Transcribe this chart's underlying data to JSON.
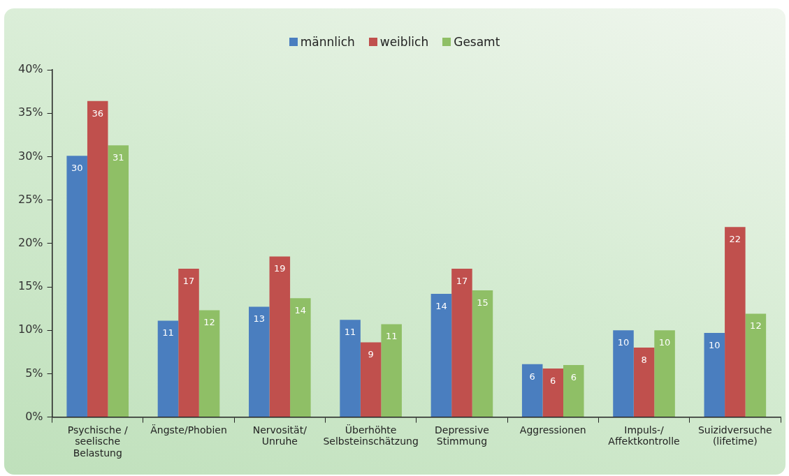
{
  "chart_data": {
    "type": "bar",
    "categories": [
      "Psychische / seelische Belastung",
      "Ängste/Phobien",
      "Nervosität/Unruhe",
      "Überhöhte Selbsteinschätzung",
      "Depressive Stimmung",
      "Aggressionen",
      "Impuls-/Affektkontrolle",
      "Suizidversuche (lifetime)"
    ],
    "series": [
      {
        "name": "männlich",
        "color": "#4a7ebf",
        "values": [
          30.1,
          11.1,
          12.7,
          11.2,
          14.2,
          6.1,
          10.0,
          9.7
        ],
        "value_labels": [
          "30",
          "11",
          "13",
          "11",
          "14",
          "6",
          "10",
          "10"
        ]
      },
      {
        "name": "weiblich",
        "color": "#c0504d",
        "values": [
          36.4,
          17.1,
          18.5,
          8.6,
          17.1,
          5.6,
          8.0,
          21.9
        ],
        "value_labels": [
          "36",
          "17",
          "19",
          "9",
          "17",
          "6",
          "8",
          "22"
        ]
      },
      {
        "name": "Gesamt",
        "color": "#8fbf66",
        "values": [
          31.3,
          12.3,
          13.7,
          10.7,
          14.6,
          6.0,
          10.0,
          11.9
        ],
        "value_labels": [
          "31",
          "12",
          "14",
          "11",
          "15",
          "6",
          "10",
          "12"
        ]
      }
    ],
    "ylim": [
      0,
      40
    ],
    "yticks": [
      {
        "value": 0,
        "label": "0%"
      },
      {
        "value": 5,
        "label": "5%"
      },
      {
        "value": 10,
        "label": "10%"
      },
      {
        "value": 15,
        "label": "15%"
      },
      {
        "value": 20,
        "label": "20%"
      },
      {
        "value": 25,
        "label": "25%"
      },
      {
        "value": 30,
        "label": "30%"
      },
      {
        "value": 35,
        "label": "35%"
      },
      {
        "value": 40,
        "label": "40%"
      }
    ],
    "grid": false,
    "legend": "top"
  }
}
